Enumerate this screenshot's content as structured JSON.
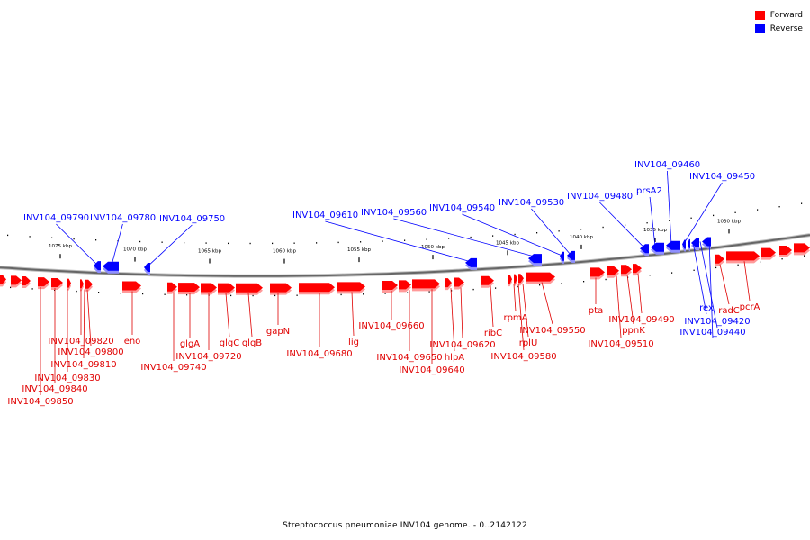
{
  "legend": {
    "forward": {
      "label": "Forward",
      "color": "#ff0000"
    },
    "reverse": {
      "label": "Reverse",
      "color": "#0000ff"
    }
  },
  "caption": "Streptococcus pneumoniae INV104 genome. - 0..2142122",
  "chart_data": {
    "type": "genome-map",
    "unit": "kbp",
    "ticks": [
      {
        "label": "1075 kbp"
      },
      {
        "label": "1070 kbp"
      },
      {
        "label": "1065 kbp"
      },
      {
        "label": "1060 kbp"
      },
      {
        "label": "1055 kbp"
      },
      {
        "label": "1050 kbp"
      },
      {
        "label": "1045 kbp"
      },
      {
        "label": "1040 kbp"
      },
      {
        "label": "1035 kbp"
      },
      {
        "label": "1030 kbp"
      }
    ],
    "reverse_labels": [
      "INV104_09790",
      "INV104_09780",
      "INV104_09750",
      "INV104_09610",
      "INV104_09560",
      "INV104_09540",
      "INV104_09530",
      "INV104_09480",
      "prsA2",
      "INV104_09460",
      "INV104_09450",
      "rex",
      "INV104_09420",
      "INV104_09440"
    ],
    "forward_labels": [
      "INV104_09820",
      "INV104_09800",
      "INV104_09810",
      "INV104_09830",
      "INV104_09840",
      "INV104_09850",
      "eno",
      "glgA",
      "INV104_09740",
      "INV104_09720",
      "glgC",
      "glgB",
      "gapN",
      "INV104_09680",
      "lig",
      "INV104_09660",
      "INV104_09650",
      "INV104_09640",
      "hlpA",
      "INV104_09620",
      "ribC",
      "rpmA",
      "rplU",
      "INV104_09580",
      "INV104_09550",
      "pta",
      "ppnK",
      "INV104_09490",
      "INV104_09510",
      "radC",
      "pcrA"
    ]
  }
}
